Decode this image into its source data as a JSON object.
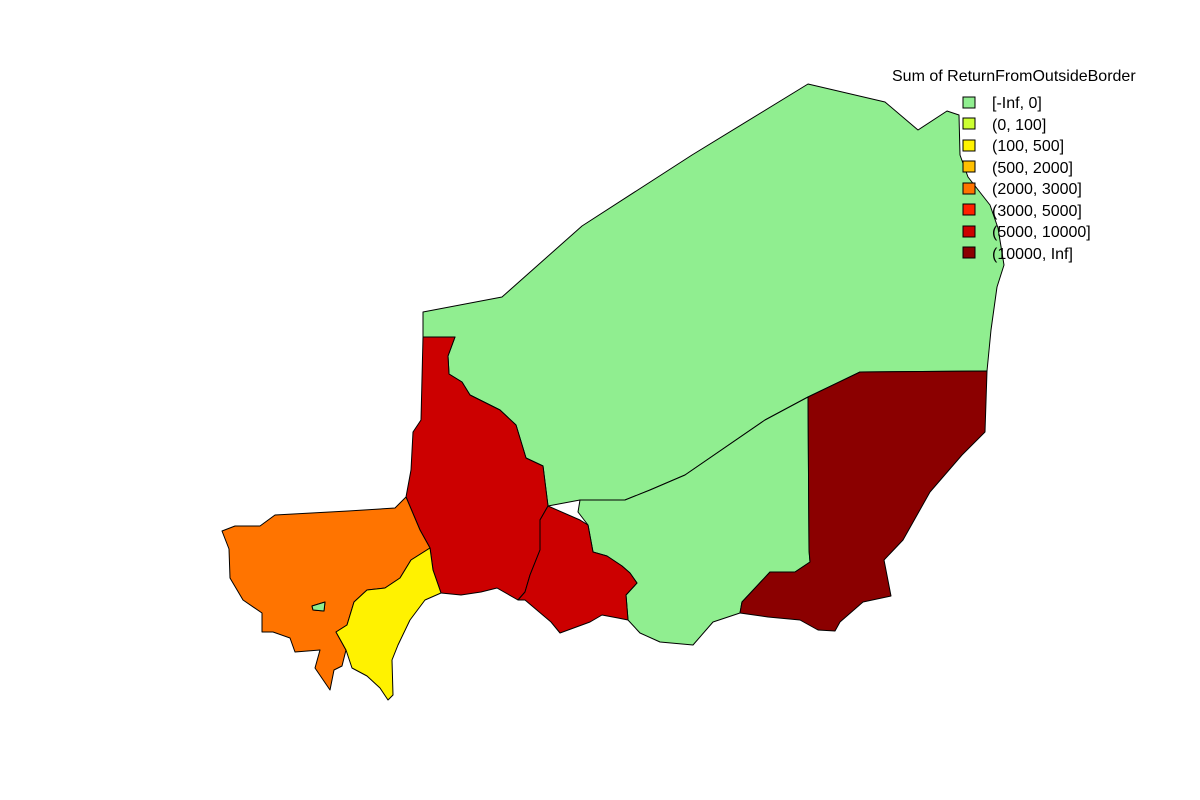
{
  "legend": {
    "title": "Sum of ReturnFromOutsideBorder",
    "classes": [
      {
        "label": "[-Inf, 0]",
        "color": "#90EE90"
      },
      {
        "label": "(0, 100]",
        "color": "#CCFF33"
      },
      {
        "label": "(100, 500]",
        "color": "#FFF200"
      },
      {
        "label": "(500, 2000]",
        "color": "#FFC000"
      },
      {
        "label": "(2000, 3000]",
        "color": "#FF7400"
      },
      {
        "label": "(3000, 5000]",
        "color": "#FF2000"
      },
      {
        "label": "(5000, 10000]",
        "color": "#CC0000"
      },
      {
        "label": "(10000, Inf]",
        "color": "#8B0000"
      }
    ]
  },
  "map": {
    "regions": [
      {
        "id": "agadez",
        "class": "[-Inf, 0]"
      },
      {
        "id": "zinder",
        "class": "[-Inf, 0]"
      },
      {
        "id": "diffa",
        "class": "(10000, Inf]"
      },
      {
        "id": "tahoua",
        "class": "(5000, 10000]"
      },
      {
        "id": "maradi",
        "class": "(5000, 10000]"
      },
      {
        "id": "tillaberi",
        "class": "(2000, 3000]"
      },
      {
        "id": "dosso",
        "class": "(100, 500]"
      },
      {
        "id": "niamey",
        "class": "[-Inf, 0]"
      }
    ]
  }
}
